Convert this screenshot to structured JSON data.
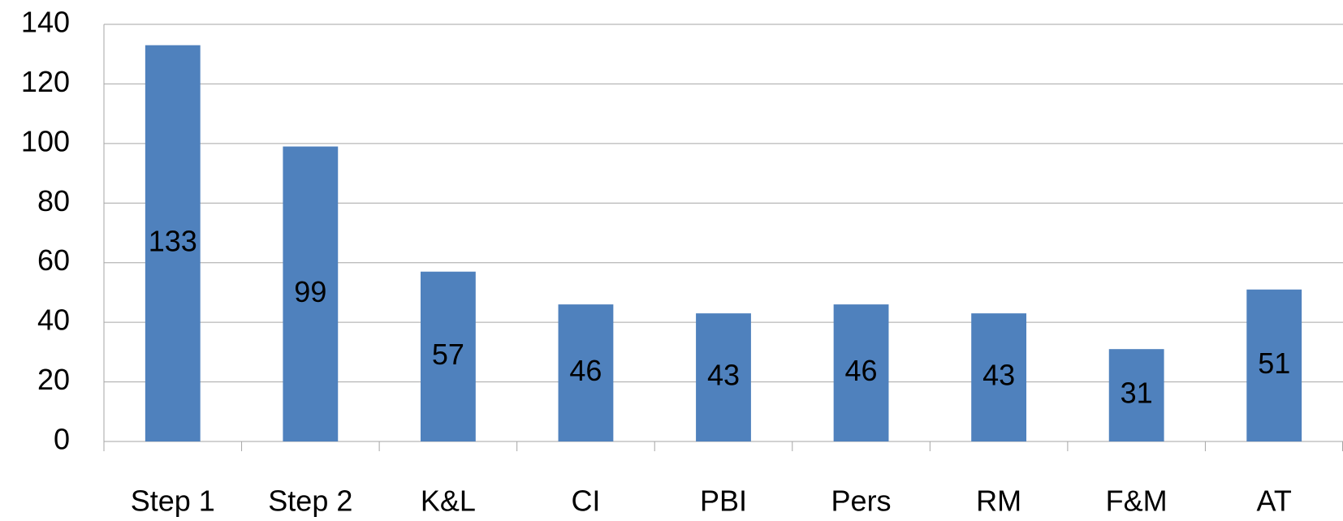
{
  "chart_data": {
    "type": "bar",
    "categories": [
      "Step 1",
      "Step 2",
      "K&L",
      "CI",
      "PBI",
      "Pers",
      "RM",
      "F&M",
      "AT"
    ],
    "values": [
      133,
      99,
      57,
      46,
      43,
      46,
      43,
      31,
      51
    ],
    "color": "#4f81bd",
    "ylim": [
      0,
      140
    ],
    "yticks": [
      0,
      20,
      40,
      60,
      80,
      100,
      120,
      140
    ],
    "grid": true
  }
}
